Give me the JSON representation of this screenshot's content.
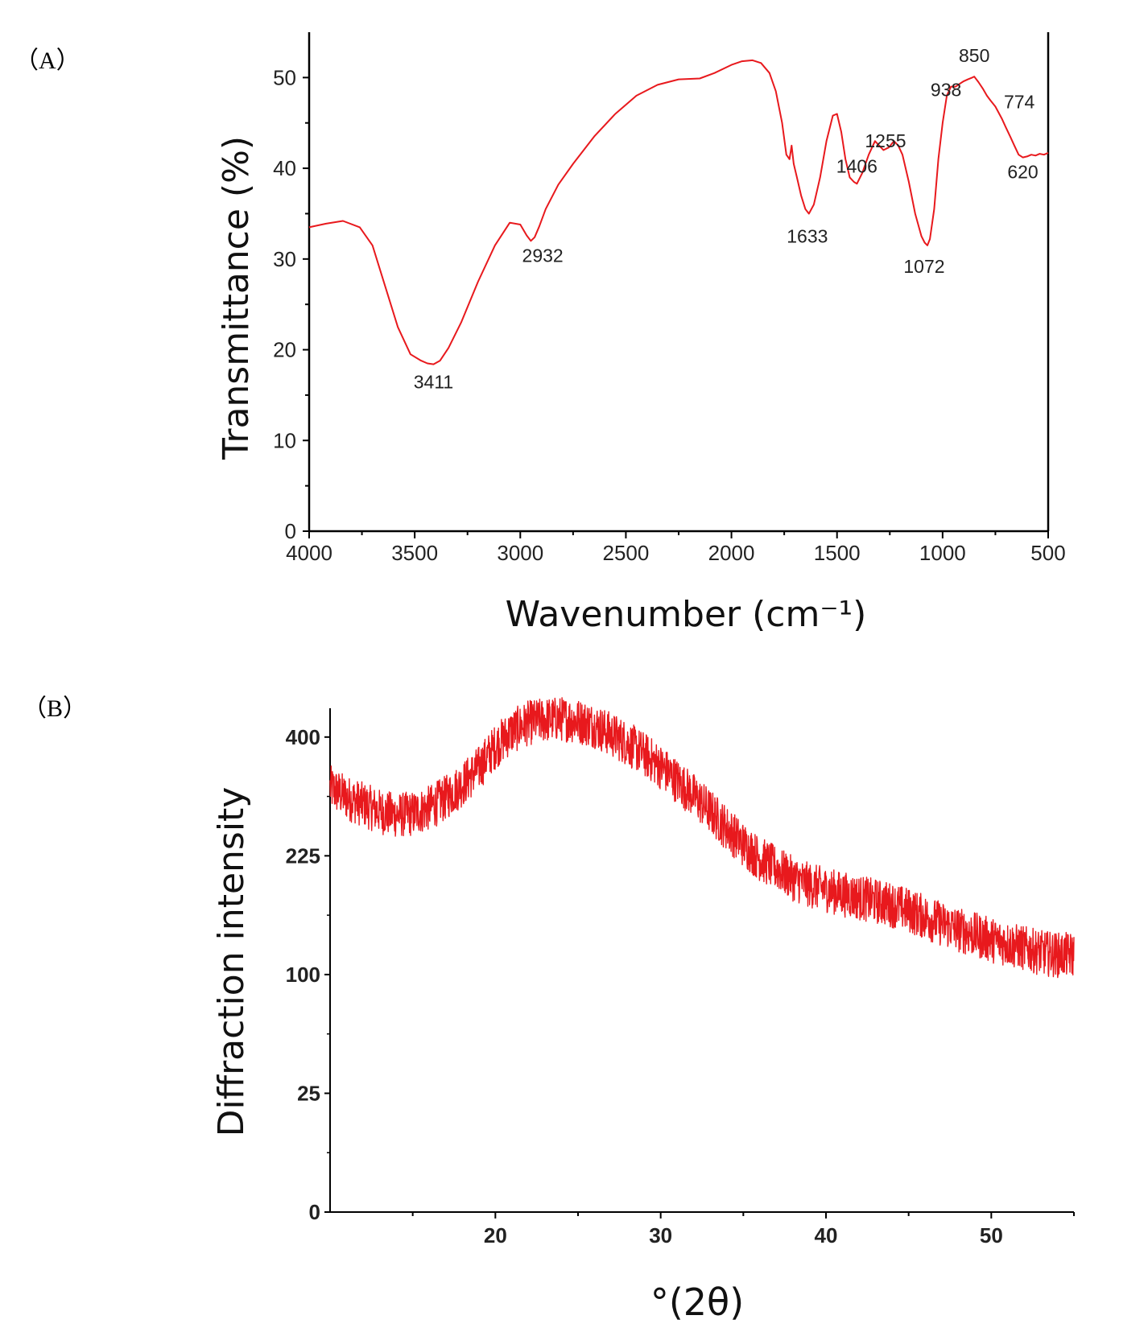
{
  "panel_labels": {
    "a": "（A）",
    "b": "（B）"
  },
  "colors": {
    "curve": "#e8191d",
    "axis": "#000000"
  },
  "chart_data": [
    {
      "id": "A",
      "type": "line",
      "title": "",
      "xlabel": "Wavenumber (cm⁻¹)",
      "ylabel": "Transmittance (%)",
      "xlim": [
        4000,
        500
      ],
      "ylim": [
        0,
        55
      ],
      "xticks": [
        4000,
        3500,
        3000,
        2500,
        2000,
        1500,
        1000,
        500
      ],
      "yticks": [
        0,
        10,
        20,
        30,
        40,
        50
      ],
      "series": [
        {
          "name": "FT-IR",
          "x": [
            4000,
            3920,
            3840,
            3760,
            3700,
            3640,
            3580,
            3520,
            3470,
            3440,
            3411,
            3380,
            3340,
            3280,
            3200,
            3120,
            3050,
            3000,
            2970,
            2950,
            2932,
            2910,
            2880,
            2820,
            2750,
            2650,
            2550,
            2450,
            2350,
            2250,
            2150,
            2080,
            2000,
            1950,
            1900,
            1860,
            1820,
            1790,
            1760,
            1740,
            1725,
            1715,
            1705,
            1690,
            1670,
            1650,
            1633,
            1610,
            1580,
            1550,
            1520,
            1500,
            1480,
            1460,
            1440,
            1420,
            1406,
            1380,
            1350,
            1320,
            1300,
            1280,
            1255,
            1230,
            1210,
            1190,
            1160,
            1130,
            1100,
            1085,
            1072,
            1060,
            1040,
            1020,
            1000,
            980,
            960,
            938,
            920,
            900,
            880,
            860,
            850,
            830,
            810,
            790,
            774,
            750,
            720,
            700,
            680,
            660,
            640,
            620,
            600,
            580,
            560,
            540,
            520,
            500
          ],
          "values": [
            33.5,
            33.9,
            34.2,
            33.5,
            31.5,
            27.0,
            22.5,
            19.5,
            18.8,
            18.5,
            18.4,
            18.8,
            20.2,
            23.0,
            27.5,
            31.5,
            34.0,
            33.8,
            32.6,
            32.0,
            32.4,
            33.6,
            35.5,
            38.2,
            40.5,
            43.5,
            46.0,
            48.0,
            49.2,
            49.8,
            49.9,
            50.5,
            51.4,
            51.8,
            51.9,
            51.6,
            50.5,
            48.5,
            45.0,
            41.5,
            41.0,
            42.5,
            40.5,
            39.0,
            37.0,
            35.5,
            35.0,
            36.0,
            39.0,
            43.0,
            45.8,
            46.0,
            44.0,
            41.0,
            39.0,
            38.5,
            38.3,
            39.5,
            41.5,
            43.0,
            42.5,
            42.0,
            42.3,
            43.0,
            42.5,
            41.5,
            38.5,
            35.0,
            32.5,
            31.8,
            31.5,
            32.2,
            35.5,
            41.0,
            45.0,
            48.0,
            49.0,
            49.0,
            49.3,
            49.6,
            49.8,
            50.0,
            50.1,
            49.5,
            48.8,
            48.0,
            47.5,
            46.8,
            45.5,
            44.5,
            43.5,
            42.5,
            41.5,
            41.2,
            41.3,
            41.5,
            41.4,
            41.6,
            41.5,
            41.7
          ]
        }
      ],
      "annotations": [
        {
          "text": "3411",
          "x": 3411,
          "y": 18.4
        },
        {
          "text": "2932",
          "x": 2932,
          "y": 32.0
        },
        {
          "text": "1633",
          "x": 1633,
          "y": 35.0
        },
        {
          "text": "1406",
          "x": 1406,
          "y": 38.3
        },
        {
          "text": "1255",
          "x": 1255,
          "y": 42.3
        },
        {
          "text": "1072",
          "x": 1072,
          "y": 31.5
        },
        {
          "text": "938",
          "x": 938,
          "y": 49.0
        },
        {
          "text": "850",
          "x": 850,
          "y": 50.1
        },
        {
          "text": "774",
          "x": 774,
          "y": 47.5
        },
        {
          "text": "620",
          "x": 620,
          "y": 41.2
        }
      ]
    },
    {
      "id": "B",
      "type": "line",
      "title": "",
      "xlabel": "°(2θ)",
      "ylabel": "Diffraction intensity",
      "xlim": [
        10,
        55
      ],
      "ylim": [
        0,
        450
      ],
      "xticks": [
        20,
        30,
        40,
        50
      ],
      "yticks": [
        0,
        25,
        100,
        225,
        400
      ],
      "yscale": "sqrt",
      "series": [
        {
          "name": "XRD",
          "x": [
            10,
            11,
            12,
            13,
            14,
            15,
            16,
            17,
            18,
            19,
            20,
            21,
            22,
            23,
            24,
            25,
            26,
            27,
            28,
            29,
            30,
            31,
            32,
            33,
            34,
            35,
            36,
            37,
            38,
            39,
            40,
            41,
            42,
            43,
            44,
            45,
            46,
            47,
            48,
            49,
            50,
            51,
            52,
            53,
            54,
            55
          ],
          "values": [
            320,
            305,
            295,
            285,
            280,
            282,
            290,
            305,
            325,
            350,
            385,
            410,
            425,
            430,
            432,
            428,
            420,
            405,
            390,
            372,
            352,
            330,
            308,
            285,
            262,
            240,
            222,
            210,
            198,
            190,
            185,
            180,
            176,
            172,
            168,
            162,
            155,
            148,
            142,
            137,
            132,
            128,
            124,
            120,
            118,
            118
          ]
        }
      ]
    }
  ]
}
